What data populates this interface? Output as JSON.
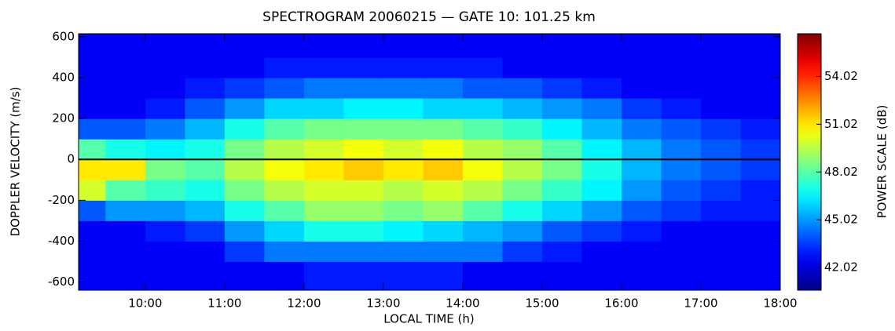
{
  "chart_data": {
    "type": "heatmap",
    "title": "SPECTROGRAM 20060215 — GATE 10: 101.25 km",
    "x_label": "LOCAL TIME (h)",
    "y_label": "DOPPLER VELOCITY (m/s)",
    "colorbar_label": "POWER SCALE (dB)",
    "colormap": "jet",
    "hline": 0,
    "xlim": [
      9.16,
      18
    ],
    "xticks": [
      {
        "value": 10,
        "label": "10:00"
      },
      {
        "value": 11,
        "label": "11:00"
      },
      {
        "value": 12,
        "label": "12:00"
      },
      {
        "value": 13,
        "label": "13:00"
      },
      {
        "value": 14,
        "label": "14:00"
      },
      {
        "value": 15,
        "label": "15:00"
      },
      {
        "value": 16,
        "label": "16:00"
      },
      {
        "value": 17,
        "label": "17:00"
      },
      {
        "value": 18,
        "label": "18:00"
      }
    ],
    "ylim": [
      -640,
      615
    ],
    "yticks": [
      -600,
      -400,
      -200,
      0,
      200,
      400,
      600
    ],
    "zlim": [
      40.6,
      56.7
    ],
    "zticks": [
      42.02,
      45.02,
      48.02,
      51.02,
      54.02
    ],
    "xbins": [
      9.16,
      9.5,
      10,
      10.5,
      11,
      11.5,
      12,
      12.5,
      13,
      13.5,
      14,
      14.5,
      15,
      15.5,
      16,
      16.5,
      17,
      17.5,
      18
    ],
    "ybins": [
      -640,
      -500,
      -400,
      -300,
      -200,
      -100,
      0,
      100,
      200,
      300,
      400,
      500,
      615
    ],
    "z": [
      [
        42.5,
        42.5,
        42.5,
        42.5,
        42.5,
        42.5,
        43,
        43,
        43,
        43,
        42.5,
        42.5,
        42.5,
        42.5,
        42.5,
        42.5,
        42.5,
        42.5
      ],
      [
        42.5,
        42.5,
        42.5,
        42.5,
        43.5,
        44.5,
        44.5,
        44.5,
        44.5,
        44.5,
        44.5,
        43.5,
        43,
        42.5,
        42.5,
        42.5,
        42.5,
        42.5
      ],
      [
        42.5,
        42.5,
        43,
        43.5,
        45,
        46,
        47,
        47,
        46.5,
        46,
        45.5,
        45,
        44,
        43.5,
        43,
        42.5,
        42.5,
        42.5
      ],
      [
        44,
        45,
        45,
        45.5,
        47,
        48,
        49,
        49,
        48.5,
        49,
        48,
        47,
        46,
        45,
        44,
        43.5,
        43,
        43
      ],
      [
        50,
        48,
        47.5,
        47,
        48.5,
        49.5,
        50,
        50,
        49.5,
        50,
        49.5,
        48.5,
        47.5,
        46.5,
        45,
        44,
        43.5,
        43
      ],
      [
        51,
        51,
        48.5,
        48,
        49.5,
        50.5,
        51,
        51.5,
        51,
        51.5,
        50.5,
        49.5,
        48.5,
        47,
        45.5,
        44.5,
        44,
        43.5
      ],
      [
        48,
        47,
        46.5,
        47,
        48.5,
        49.5,
        50,
        50.5,
        50,
        50.5,
        49.5,
        49,
        48,
        46.5,
        45.5,
        44.5,
        44,
        43.5
      ],
      [
        44,
        44,
        44.5,
        45.5,
        47,
        48,
        48.5,
        48.5,
        48.5,
        48.5,
        48,
        47.5,
        46.5,
        45.5,
        44.5,
        44,
        43.5,
        43
      ],
      [
        42.5,
        42.5,
        43,
        44,
        45,
        46,
        46,
        46.5,
        46.5,
        46,
        46,
        45.5,
        45,
        44.5,
        43.5,
        43,
        42.5,
        42.5
      ],
      [
        42.5,
        42.5,
        42.5,
        43,
        43.5,
        44,
        44.5,
        44.5,
        44.5,
        44.5,
        44,
        44,
        43.5,
        43,
        42.5,
        42.5,
        42.5,
        42.5
      ],
      [
        42.5,
        42.5,
        42.5,
        42.5,
        42.5,
        43,
        43,
        43,
        43,
        43,
        43,
        42.5,
        42.5,
        42.5,
        42.5,
        42.5,
        42.5,
        42.5
      ],
      [
        42.5,
        42.5,
        42.5,
        42.5,
        42.5,
        42.5,
        42.5,
        42.5,
        42.5,
        42.5,
        42.5,
        42.5,
        42.5,
        42.5,
        42.5,
        42.5,
        42.5,
        42.5
      ]
    ]
  }
}
